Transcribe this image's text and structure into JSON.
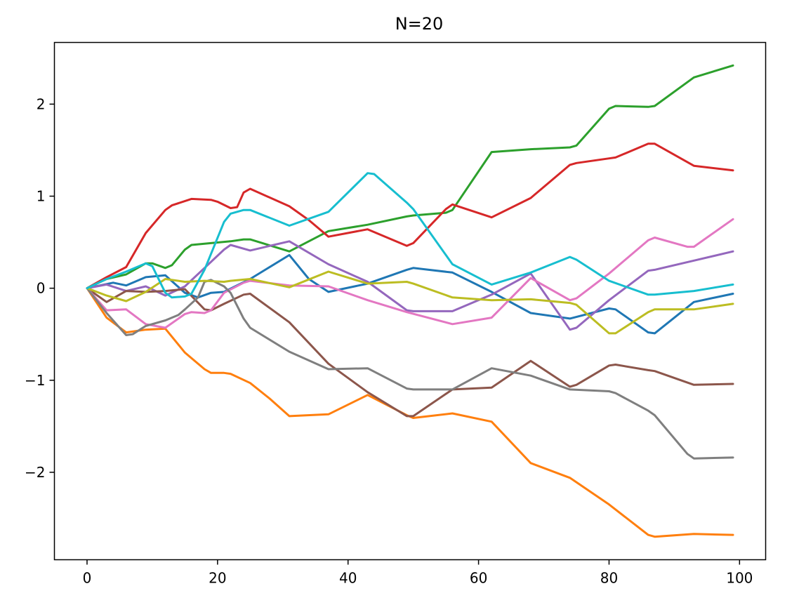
{
  "chart_data": {
    "type": "line",
    "title": "N=20",
    "xlabel": "",
    "ylabel": "",
    "xlim": [
      -5,
      104
    ],
    "ylim": [
      -2.95,
      2.67
    ],
    "xticks": [
      0,
      20,
      40,
      60,
      80,
      100
    ],
    "yticks": [
      -2,
      -1,
      0,
      1,
      2
    ],
    "xtick_labels": [
      "0",
      "20",
      "40",
      "60",
      "80",
      "100"
    ],
    "ytick_labels": [
      "−2",
      "−1",
      "0",
      "1",
      "2"
    ],
    "grid": false,
    "legend": "none",
    "series": [
      {
        "color": "#1f77b4",
        "points": [
          [
            0,
            0
          ],
          [
            4,
            0.06
          ],
          [
            6,
            0.03
          ],
          [
            9,
            0.12
          ],
          [
            12,
            0.14
          ],
          [
            15,
            -0.05
          ],
          [
            17,
            -0.1
          ],
          [
            19,
            -0.05
          ],
          [
            21,
            -0.04
          ],
          [
            25,
            0.1
          ],
          [
            31,
            0.36
          ],
          [
            34,
            0.1
          ],
          [
            37,
            -0.04
          ],
          [
            43,
            0.05
          ],
          [
            49,
            0.2
          ],
          [
            50,
            0.22
          ],
          [
            56,
            0.17
          ],
          [
            62,
            -0.04
          ],
          [
            68,
            -0.27
          ],
          [
            74,
            -0.33
          ],
          [
            80,
            -0.22
          ],
          [
            81,
            -0.23
          ],
          [
            86,
            -0.48
          ],
          [
            87,
            -0.49
          ],
          [
            93,
            -0.15
          ],
          [
            99,
            -0.06
          ]
        ]
      },
      {
        "color": "#ff7f0e",
        "points": [
          [
            0,
            0
          ],
          [
            3,
            -0.32
          ],
          [
            6,
            -0.48
          ],
          [
            9,
            -0.45
          ],
          [
            12,
            -0.44
          ],
          [
            15,
            -0.7
          ],
          [
            18,
            -0.88
          ],
          [
            19,
            -0.92
          ],
          [
            21,
            -0.92
          ],
          [
            22,
            -0.93
          ],
          [
            25,
            -1.03
          ],
          [
            28,
            -1.2
          ],
          [
            31,
            -1.39
          ],
          [
            37,
            -1.37
          ],
          [
            43,
            -1.16
          ],
          [
            49,
            -1.38
          ],
          [
            50,
            -1.41
          ],
          [
            56,
            -1.36
          ],
          [
            62,
            -1.45
          ],
          [
            68,
            -1.9
          ],
          [
            74,
            -2.06
          ],
          [
            80,
            -2.35
          ],
          [
            86,
            -2.68
          ],
          [
            87,
            -2.7
          ],
          [
            93,
            -2.67
          ],
          [
            99,
            -2.68
          ]
        ]
      },
      {
        "color": "#2ca02c",
        "points": [
          [
            0,
            0
          ],
          [
            3,
            0.1
          ],
          [
            6,
            0.15
          ],
          [
            9,
            0.27
          ],
          [
            10,
            0.27
          ],
          [
            12,
            0.22
          ],
          [
            13,
            0.25
          ],
          [
            15,
            0.42
          ],
          [
            16,
            0.47
          ],
          [
            19,
            0.49
          ],
          [
            22,
            0.51
          ],
          [
            24,
            0.53
          ],
          [
            25,
            0.53
          ],
          [
            31,
            0.4
          ],
          [
            37,
            0.62
          ],
          [
            43,
            0.69
          ],
          [
            49,
            0.78
          ],
          [
            50,
            0.79
          ],
          [
            55,
            0.82
          ],
          [
            56,
            0.85
          ],
          [
            62,
            1.48
          ],
          [
            68,
            1.51
          ],
          [
            74,
            1.53
          ],
          [
            75,
            1.55
          ],
          [
            80,
            1.95
          ],
          [
            81,
            1.98
          ],
          [
            86,
            1.97
          ],
          [
            87,
            1.98
          ],
          [
            93,
            2.29
          ],
          [
            99,
            2.42
          ]
        ]
      },
      {
        "color": "#d62728",
        "points": [
          [
            0,
            0
          ],
          [
            3,
            0.12
          ],
          [
            6,
            0.23
          ],
          [
            9,
            0.6
          ],
          [
            12,
            0.85
          ],
          [
            13,
            0.9
          ],
          [
            16,
            0.97
          ],
          [
            19,
            0.96
          ],
          [
            20,
            0.94
          ],
          [
            22,
            0.87
          ],
          [
            23,
            0.88
          ],
          [
            24,
            1.04
          ],
          [
            25,
            1.08
          ],
          [
            31,
            0.89
          ],
          [
            34,
            0.74
          ],
          [
            37,
            0.56
          ],
          [
            43,
            0.64
          ],
          [
            49,
            0.46
          ],
          [
            50,
            0.49
          ],
          [
            55,
            0.86
          ],
          [
            56,
            0.91
          ],
          [
            62,
            0.77
          ],
          [
            68,
            0.98
          ],
          [
            74,
            1.34
          ],
          [
            75,
            1.36
          ],
          [
            80,
            1.41
          ],
          [
            81,
            1.42
          ],
          [
            86,
            1.57
          ],
          [
            87,
            1.57
          ],
          [
            93,
            1.33
          ],
          [
            99,
            1.28
          ]
        ]
      },
      {
        "color": "#9467bd",
        "points": [
          [
            0,
            0
          ],
          [
            3,
            0.04
          ],
          [
            6,
            -0.03
          ],
          [
            9,
            0.02
          ],
          [
            12,
            -0.08
          ],
          [
            15,
            0.02
          ],
          [
            18,
            0.22
          ],
          [
            21,
            0.42
          ],
          [
            22,
            0.47
          ],
          [
            25,
            0.41
          ],
          [
            31,
            0.51
          ],
          [
            37,
            0.26
          ],
          [
            43,
            0.07
          ],
          [
            49,
            -0.24
          ],
          [
            50,
            -0.25
          ],
          [
            56,
            -0.25
          ],
          [
            62,
            -0.07
          ],
          [
            68,
            0.16
          ],
          [
            74,
            -0.45
          ],
          [
            75,
            -0.43
          ],
          [
            80,
            -0.13
          ],
          [
            86,
            0.19
          ],
          [
            87,
            0.2
          ],
          [
            93,
            0.3
          ],
          [
            99,
            0.4
          ]
        ]
      },
      {
        "color": "#8c564b",
        "points": [
          [
            0,
            0
          ],
          [
            3,
            -0.15
          ],
          [
            6,
            -0.03
          ],
          [
            9,
            -0.04
          ],
          [
            12,
            -0.03
          ],
          [
            15,
            -0.01
          ],
          [
            18,
            -0.23
          ],
          [
            19,
            -0.24
          ],
          [
            21,
            -0.17
          ],
          [
            24,
            -0.07
          ],
          [
            25,
            -0.06
          ],
          [
            31,
            -0.37
          ],
          [
            37,
            -0.82
          ],
          [
            43,
            -1.13
          ],
          [
            49,
            -1.39
          ],
          [
            50,
            -1.39
          ],
          [
            56,
            -1.1
          ],
          [
            62,
            -1.08
          ],
          [
            68,
            -0.79
          ],
          [
            74,
            -1.07
          ],
          [
            75,
            -1.05
          ],
          [
            80,
            -0.84
          ],
          [
            81,
            -0.83
          ],
          [
            86,
            -0.89
          ],
          [
            87,
            -0.9
          ],
          [
            93,
            -1.05
          ],
          [
            99,
            -1.04
          ]
        ]
      },
      {
        "color": "#e377c2",
        "points": [
          [
            0,
            0
          ],
          [
            3,
            -0.24
          ],
          [
            6,
            -0.23
          ],
          [
            9,
            -0.39
          ],
          [
            12,
            -0.43
          ],
          [
            15,
            -0.28
          ],
          [
            16,
            -0.26
          ],
          [
            18,
            -0.27
          ],
          [
            19,
            -0.24
          ],
          [
            21,
            -0.05
          ],
          [
            24,
            0.06
          ],
          [
            25,
            0.08
          ],
          [
            31,
            0.03
          ],
          [
            37,
            0.02
          ],
          [
            43,
            -0.13
          ],
          [
            49,
            -0.26
          ],
          [
            56,
            -0.39
          ],
          [
            62,
            -0.32
          ],
          [
            68,
            0.11
          ],
          [
            74,
            -0.13
          ],
          [
            75,
            -0.11
          ],
          [
            80,
            0.16
          ],
          [
            86,
            0.52
          ],
          [
            87,
            0.55
          ],
          [
            92,
            0.45
          ],
          [
            93,
            0.45
          ],
          [
            99,
            0.75
          ]
        ]
      },
      {
        "color": "#7f7f7f",
        "points": [
          [
            0,
            0
          ],
          [
            3,
            -0.27
          ],
          [
            6,
            -0.51
          ],
          [
            7,
            -0.5
          ],
          [
            9,
            -0.41
          ],
          [
            12,
            -0.35
          ],
          [
            14,
            -0.29
          ],
          [
            15,
            -0.23
          ],
          [
            17,
            -0.1
          ],
          [
            18,
            0.07
          ],
          [
            19,
            0.09
          ],
          [
            21,
            0.02
          ],
          [
            22,
            -0.05
          ],
          [
            24,
            -0.33
          ],
          [
            25,
            -0.43
          ],
          [
            31,
            -0.69
          ],
          [
            37,
            -0.88
          ],
          [
            43,
            -0.87
          ],
          [
            49,
            -1.09
          ],
          [
            50,
            -1.1
          ],
          [
            56,
            -1.1
          ],
          [
            62,
            -0.87
          ],
          [
            68,
            -0.95
          ],
          [
            74,
            -1.1
          ],
          [
            80,
            -1.12
          ],
          [
            81,
            -1.14
          ],
          [
            86,
            -1.33
          ],
          [
            87,
            -1.38
          ],
          [
            92,
            -1.8
          ],
          [
            93,
            -1.85
          ],
          [
            99,
            -1.84
          ]
        ]
      },
      {
        "color": "#bcbd22",
        "points": [
          [
            0,
            0
          ],
          [
            3,
            -0.08
          ],
          [
            6,
            -0.14
          ],
          [
            9,
            -0.04
          ],
          [
            12,
            0.1
          ],
          [
            15,
            0.07
          ],
          [
            18,
            0.08
          ],
          [
            21,
            0.07
          ],
          [
            22,
            0.08
          ],
          [
            25,
            0.1
          ],
          [
            31,
            0.01
          ],
          [
            37,
            0.18
          ],
          [
            43,
            0.05
          ],
          [
            49,
            0.07
          ],
          [
            50,
            0.05
          ],
          [
            56,
            -0.1
          ],
          [
            62,
            -0.13
          ],
          [
            68,
            -0.12
          ],
          [
            74,
            -0.16
          ],
          [
            75,
            -0.18
          ],
          [
            80,
            -0.49
          ],
          [
            81,
            -0.49
          ],
          [
            86,
            -0.26
          ],
          [
            87,
            -0.23
          ],
          [
            93,
            -0.23
          ],
          [
            99,
            -0.17
          ]
        ]
      },
      {
        "color": "#17becf",
        "points": [
          [
            0,
            0
          ],
          [
            3,
            0.1
          ],
          [
            6,
            0.18
          ],
          [
            9,
            0.27
          ],
          [
            10,
            0.24
          ],
          [
            12,
            -0.05
          ],
          [
            13,
            -0.1
          ],
          [
            15,
            -0.09
          ],
          [
            16,
            -0.06
          ],
          [
            18,
            0.2
          ],
          [
            21,
            0.72
          ],
          [
            22,
            0.81
          ],
          [
            24,
            0.85
          ],
          [
            25,
            0.85
          ],
          [
            31,
            0.68
          ],
          [
            37,
            0.83
          ],
          [
            43,
            1.25
          ],
          [
            44,
            1.24
          ],
          [
            49,
            0.93
          ],
          [
            50,
            0.86
          ],
          [
            56,
            0.26
          ],
          [
            62,
            0.04
          ],
          [
            68,
            0.17
          ],
          [
            74,
            0.34
          ],
          [
            75,
            0.31
          ],
          [
            80,
            0.08
          ],
          [
            86,
            -0.07
          ],
          [
            87,
            -0.07
          ],
          [
            93,
            -0.03
          ],
          [
            99,
            0.04
          ]
        ]
      }
    ]
  }
}
